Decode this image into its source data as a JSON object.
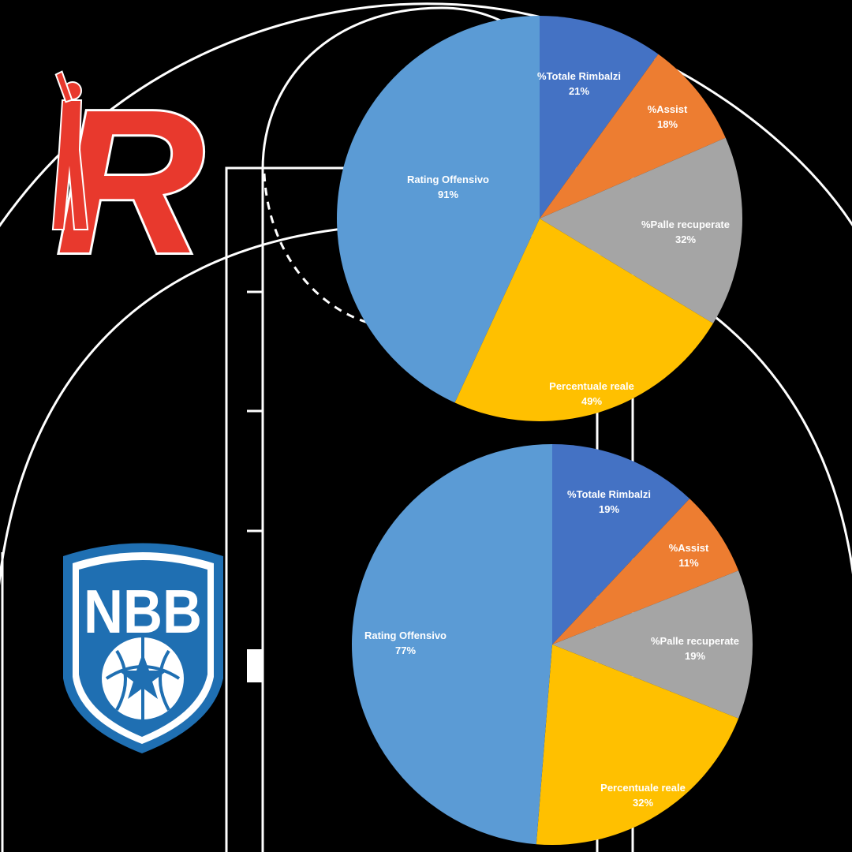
{
  "logos": {
    "top": {
      "name": "red-r-logo",
      "text": "R",
      "color": "#e8392d"
    },
    "bottom": {
      "name": "nbb-shield-logo",
      "text": "NBB",
      "color": "#1f6fb2"
    }
  },
  "colors": {
    "background": "#000000",
    "court_lines": "#ffffff",
    "rating_offensivo": "#5b9bd5",
    "totale_rimbalzi": "#4472c4",
    "assist": "#ed7d31",
    "palle_recuperate": "#a5a5a5",
    "percentuale_reale": "#ffc000"
  },
  "chart_data": [
    {
      "type": "pie",
      "slices": [
        {
          "label": "%Totale Rimbalzi",
          "value": 21,
          "value_label": "21%",
          "color": "#4472c4"
        },
        {
          "label": "%Assist",
          "value": 18,
          "value_label": "18%",
          "color": "#ed7d31"
        },
        {
          "label": "%Palle recuperate",
          "value": 32,
          "value_label": "32%",
          "color": "#a5a5a5"
        },
        {
          "label": "Percentuale reale",
          "value": 49,
          "value_label": "49%",
          "color": "#ffc000"
        },
        {
          "label": "Rating Offensivo",
          "value": 91,
          "value_label": "91%",
          "color": "#5b9bd5"
        }
      ]
    },
    {
      "type": "pie",
      "slices": [
        {
          "label": "%Totale Rimbalzi",
          "value": 19,
          "value_label": "19%",
          "color": "#4472c4"
        },
        {
          "label": "%Assist",
          "value": 11,
          "value_label": "11%",
          "color": "#ed7d31"
        },
        {
          "label": "%Palle recuperate",
          "value": 19,
          "value_label": "19%",
          "color": "#a5a5a5"
        },
        {
          "label": "Percentuale reale",
          "value": 32,
          "value_label": "32%",
          "color": "#ffc000"
        },
        {
          "label": "Rating Offensivo",
          "value": 77,
          "value_label": "77%",
          "color": "#5b9bd5"
        }
      ]
    }
  ]
}
